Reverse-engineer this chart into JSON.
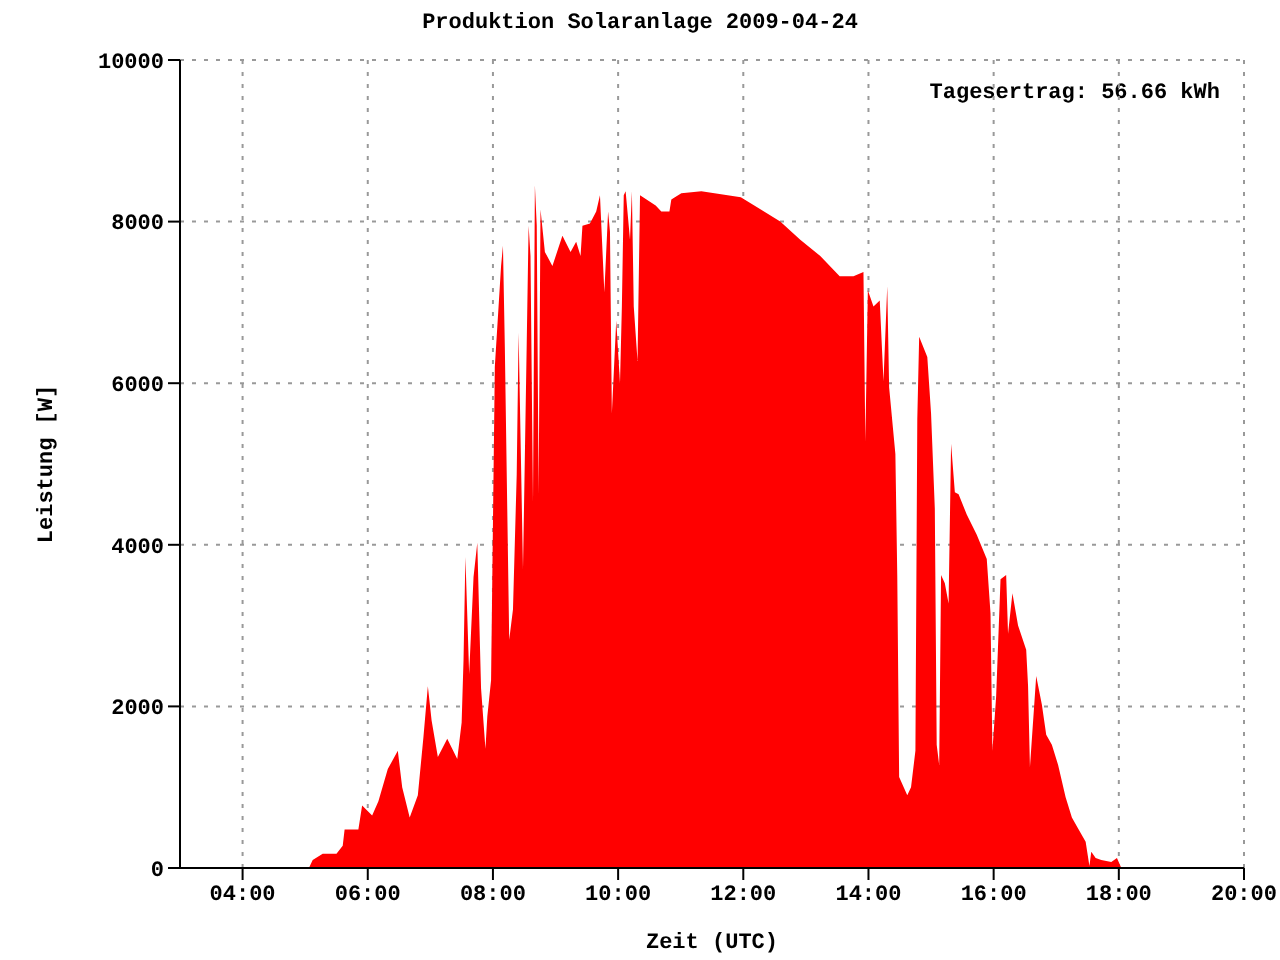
{
  "chart_data": {
    "type": "area",
    "title": "Produktion Solaranlage 2009-04-24",
    "xlabel": "Zeit (UTC)",
    "ylabel": "Leistung [W]",
    "annotations": [
      "Tagesertrag: 56.66 kWh"
    ],
    "xlim": [
      3,
      20
    ],
    "xticks": [
      {
        "value": 4,
        "label": "04:00"
      },
      {
        "value": 6,
        "label": "06:00"
      },
      {
        "value": 8,
        "label": "08:00"
      },
      {
        "value": 10,
        "label": "10:00"
      },
      {
        "value": 12,
        "label": "12:00"
      },
      {
        "value": 14,
        "label": "14:00"
      },
      {
        "value": 16,
        "label": "16:00"
      },
      {
        "value": 18,
        "label": "18:00"
      },
      {
        "value": 20,
        "label": "20:00"
      }
    ],
    "ylim": [
      0,
      10000
    ],
    "yticks": [
      0,
      2000,
      4000,
      6000,
      8000,
      10000
    ],
    "grid": true,
    "x": [
      5.06,
      5.12,
      5.28,
      5.5,
      5.6,
      5.63,
      5.85,
      5.91,
      6.07,
      6.17,
      6.32,
      6.48,
      6.55,
      6.67,
      6.8,
      6.89,
      6.96,
      7.02,
      7.12,
      7.27,
      7.43,
      7.5,
      7.53,
      7.56,
      7.62,
      7.69,
      7.75,
      7.81,
      7.88,
      7.91,
      7.97,
      8.03,
      8.13,
      8.16,
      8.19,
      8.26,
      8.32,
      8.38,
      8.41,
      8.48,
      8.54,
      8.57,
      8.6,
      8.64,
      8.67,
      8.7,
      8.73,
      8.76,
      8.83,
      8.95,
      9.11,
      9.24,
      9.33,
      9.4,
      9.43,
      9.55,
      9.65,
      9.71,
      9.78,
      9.84,
      9.87,
      9.9,
      9.97,
      10.03,
      10.06,
      10.09,
      10.12,
      10.19,
      10.22,
      10.25,
      10.31,
      10.35,
      10.6,
      10.69,
      10.82,
      10.85,
      11.01,
      11.33,
      11.96,
      12.28,
      12.59,
      12.91,
      13.23,
      13.54,
      13.76,
      13.92,
      13.95,
      13.99,
      14.08,
      14.18,
      14.24,
      14.3,
      14.33,
      14.43,
      14.46,
      14.49,
      14.62,
      14.68,
      14.75,
      14.78,
      14.81,
      14.94,
      15.0,
      15.06,
      15.09,
      15.13,
      15.16,
      15.22,
      15.28,
      15.32,
      15.38,
      15.44,
      15.57,
      15.73,
      15.89,
      15.95,
      15.98,
      16.04,
      16.11,
      16.2,
      16.23,
      16.3,
      16.39,
      16.52,
      16.55,
      16.58,
      16.68,
      16.77,
      16.84,
      16.93,
      17.03,
      17.15,
      17.25,
      17.34,
      17.47,
      17.53,
      17.56,
      17.63,
      17.72,
      17.88,
      17.97,
      18.04
    ],
    "series": [
      {
        "color": "#ff0000",
        "values": [
          0,
          100,
          175,
          175,
          275,
          475,
          475,
          775,
          650,
          825,
          1225,
          1450,
          1000,
          625,
          900,
          1625,
          2250,
          1825,
          1375,
          1600,
          1350,
          1800,
          2575,
          3850,
          2400,
          3600,
          4025,
          2225,
          1475,
          1875,
          2325,
          6200,
          7450,
          7700,
          6450,
          2825,
          3200,
          4875,
          6625,
          3700,
          6500,
          7950,
          7575,
          4525,
          8450,
          7950,
          4625,
          8150,
          7625,
          7450,
          7825,
          7625,
          7750,
          7575,
          7950,
          7975,
          8125,
          8325,
          7125,
          8125,
          7875,
          5625,
          6775,
          6000,
          6950,
          8325,
          8375,
          7775,
          8375,
          6950,
          6275,
          8325,
          8200,
          8125,
          8125,
          8275,
          8350,
          8375,
          8300,
          8150,
          8000,
          7775,
          7575,
          7325,
          7325,
          7375,
          5275,
          7150,
          6950,
          7025,
          6025,
          7200,
          5950,
          5125,
          3625,
          1125,
          900,
          1000,
          1450,
          5550,
          6575,
          6325,
          5625,
          4450,
          1525,
          1275,
          3625,
          3525,
          3275,
          5250,
          4650,
          4625,
          4375,
          4125,
          3825,
          3150,
          1450,
          2125,
          3575,
          3625,
          2900,
          3400,
          3000,
          2700,
          2250,
          1250,
          2375,
          2025,
          1650,
          1525,
          1275,
          875,
          625,
          500,
          325,
          25,
          200,
          125,
          100,
          75,
          125,
          0
        ]
      }
    ]
  }
}
